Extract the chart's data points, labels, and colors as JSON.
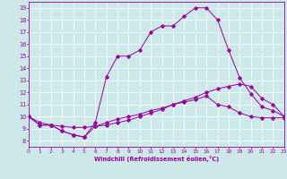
{
  "xlabel": "Windchill (Refroidissement éolien,°C)",
  "background_color": "#cce8e8",
  "line_color": "#990099",
  "grid_color": "#ffffff",
  "xlim": [
    0,
    23
  ],
  "ylim": [
    7.5,
    19.5
  ],
  "xticks": [
    0,
    1,
    2,
    3,
    4,
    5,
    6,
    7,
    8,
    9,
    10,
    11,
    12,
    13,
    14,
    15,
    16,
    17,
    18,
    19,
    20,
    21,
    22,
    23
  ],
  "yticks": [
    8,
    9,
    10,
    11,
    12,
    13,
    14,
    15,
    16,
    17,
    18,
    19
  ],
  "line_upper_x": [
    0,
    1,
    2,
    3,
    4,
    5,
    6,
    7,
    8,
    9,
    10,
    11,
    12,
    13,
    14,
    15,
    16,
    17,
    18,
    19,
    20,
    21,
    22,
    23
  ],
  "line_upper_y": [
    10.0,
    9.3,
    9.3,
    8.8,
    8.5,
    8.3,
    9.5,
    13.3,
    15.0,
    15.0,
    15.5,
    17.0,
    17.5,
    17.5,
    18.3,
    19.0,
    19.0,
    18.0,
    15.5,
    13.2,
    11.9,
    10.8,
    10.5,
    10.0
  ],
  "line_mid_x": [
    0,
    1,
    2,
    3,
    4,
    5,
    6,
    7,
    8,
    9,
    10,
    11,
    12,
    13,
    14,
    15,
    16,
    17,
    18,
    19,
    20,
    21,
    22,
    23
  ],
  "line_mid_y": [
    10.0,
    9.5,
    9.3,
    9.2,
    9.1,
    9.1,
    9.2,
    9.3,
    9.5,
    9.7,
    10.0,
    10.3,
    10.6,
    11.0,
    11.3,
    11.6,
    12.0,
    12.3,
    12.5,
    12.7,
    12.5,
    11.5,
    11.0,
    10.0
  ],
  "line_lower_x": [
    0,
    1,
    2,
    3,
    4,
    5,
    6,
    7,
    8,
    9,
    10,
    11,
    12,
    13,
    14,
    15,
    16,
    17,
    18,
    19,
    20,
    21,
    22,
    23
  ],
  "line_lower_y": [
    10.0,
    9.3,
    9.3,
    8.8,
    8.5,
    8.3,
    9.2,
    9.5,
    9.8,
    10.0,
    10.2,
    10.5,
    10.7,
    11.0,
    11.2,
    11.4,
    11.7,
    11.0,
    10.8,
    10.3,
    10.0,
    9.9,
    9.9,
    9.9
  ]
}
